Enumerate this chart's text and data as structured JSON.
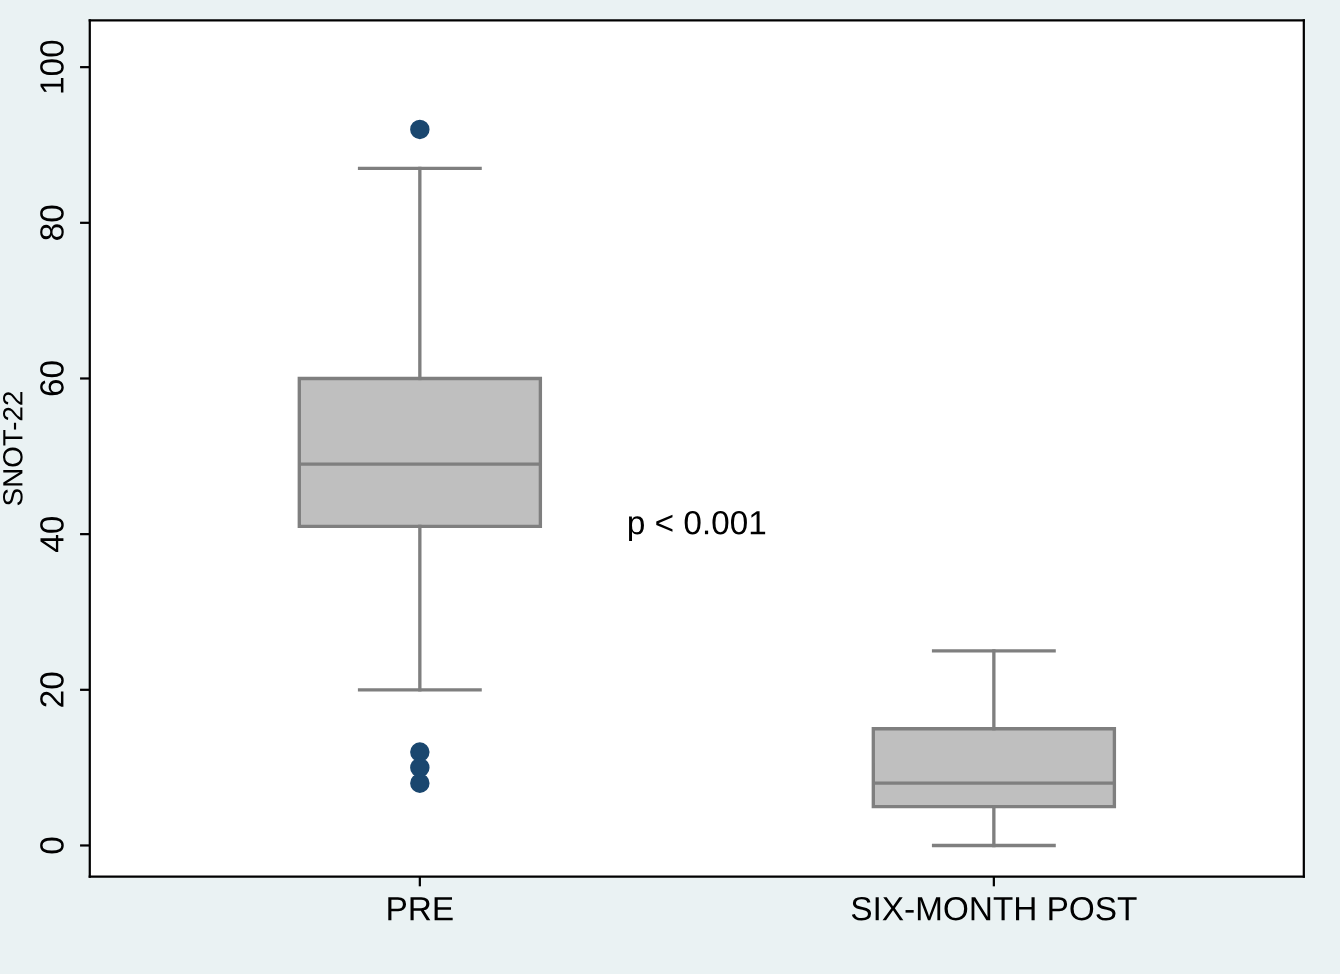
{
  "chart_data": {
    "type": "box",
    "ylabel": "SNOT-22",
    "categories": [
      "PRE",
      "SIX-MONTH POST"
    ],
    "boxes": [
      {
        "low": 20,
        "q1": 41,
        "median": 49,
        "q3": 60,
        "high": 87,
        "outliers": [
          92,
          12,
          10,
          8
        ]
      },
      {
        "low": 0,
        "q1": 5,
        "median": 8,
        "q3": 15,
        "high": 25
      }
    ],
    "color": "#bfbfbf",
    "ylim": [
      -4,
      106
    ],
    "yticks": [
      0,
      20,
      40,
      60,
      80,
      100
    ],
    "grid": false,
    "annotations": [
      "p < 0.001"
    ]
  }
}
